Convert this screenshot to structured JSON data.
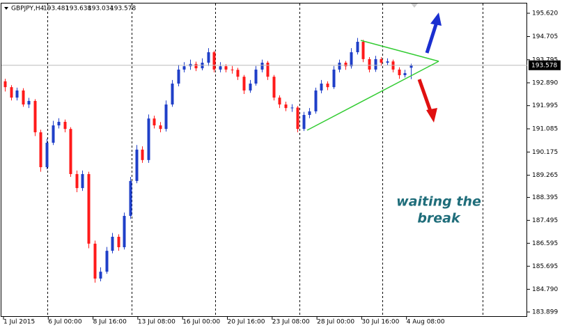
{
  "chart_data": {
    "type": "candlestick",
    "symbol": "GBPJPY,H4",
    "up_color": "#1f3fc8",
    "down_color": "#ff1a1a",
    "ylim": [
      183.708,
      196.003
    ],
    "yticks": [
      {
        "value": 195.62,
        "label": "195.620"
      },
      194.705,
      193.795,
      {
        "value": 192.89,
        "label": "192.890"
      },
      191.995,
      191.085,
      190.175,
      189.265,
      188.395,
      187.495,
      186.595,
      185.695,
      {
        "value": 184.79,
        "label": "184.790"
      },
      183.899
    ],
    "xlabels": [
      "1 Jul 2015",
      "6 Jul 00:00",
      "8 Jul 16:00",
      "13 Jul 08:00",
      "16 Jul 00:00",
      "20 Jul 16:00",
      "23 Jul 08:00",
      "28 Jul 00:00",
      "30 Jul 16:00",
      "4 Aug 08:00"
    ],
    "annotation": [
      "waiting the",
      "break"
    ],
    "candles": [
      [
        192.95,
        193.05,
        192.55,
        192.72
      ],
      [
        192.72,
        192.8,
        192.2,
        192.31
      ],
      [
        192.31,
        192.7,
        192.2,
        192.59
      ],
      [
        192.59,
        192.68,
        191.95,
        192.04
      ],
      [
        192.04,
        192.3,
        191.9,
        192.18
      ],
      [
        192.18,
        192.25,
        190.8,
        190.95
      ],
      [
        190.95,
        191.05,
        189.4,
        189.58
      ],
      [
        189.58,
        190.7,
        189.5,
        190.54
      ],
      [
        190.54,
        191.4,
        190.45,
        191.22
      ],
      [
        191.22,
        191.5,
        191.1,
        191.36
      ],
      [
        191.36,
        191.45,
        190.95,
        191.08
      ],
      [
        191.08,
        191.15,
        189.2,
        189.31
      ],
      [
        189.31,
        189.45,
        188.6,
        188.76
      ],
      [
        188.76,
        189.45,
        188.65,
        189.31
      ],
      [
        189.31,
        189.4,
        186.4,
        186.58
      ],
      [
        186.58,
        186.7,
        185.05,
        185.21
      ],
      [
        185.21,
        185.65,
        185.1,
        185.48
      ],
      [
        185.48,
        186.45,
        185.4,
        186.3
      ],
      [
        186.3,
        187.0,
        186.2,
        186.85
      ],
      [
        186.85,
        186.95,
        186.3,
        186.44
      ],
      [
        186.44,
        187.8,
        186.35,
        187.67
      ],
      [
        187.67,
        189.2,
        187.55,
        189.04
      ],
      [
        189.04,
        190.45,
        188.95,
        190.27
      ],
      [
        190.27,
        190.4,
        189.75,
        189.86
      ],
      [
        189.86,
        191.65,
        189.75,
        191.49
      ],
      [
        191.49,
        191.6,
        191.1,
        191.22
      ],
      [
        191.22,
        191.35,
        190.95,
        191.08
      ],
      [
        191.08,
        192.2,
        190.98,
        192.04
      ],
      [
        192.04,
        193.0,
        191.95,
        192.86
      ],
      [
        192.86,
        193.6,
        192.75,
        193.41
      ],
      [
        193.41,
        193.7,
        193.3,
        193.54
      ],
      [
        193.54,
        193.8,
        193.4,
        193.63
      ],
      [
        193.63,
        193.72,
        193.35,
        193.46
      ],
      [
        193.46,
        193.85,
        193.38,
        193.68
      ],
      [
        193.68,
        194.25,
        193.55,
        194.09
      ],
      [
        194.09,
        194.15,
        193.3,
        193.41
      ],
      [
        193.41,
        193.7,
        193.3,
        193.54
      ],
      [
        193.54,
        193.62,
        193.3,
        193.41
      ],
      [
        193.41,
        193.55,
        193.25,
        193.4
      ],
      [
        193.4,
        193.48,
        193.0,
        193.13
      ],
      [
        193.13,
        193.2,
        192.45,
        192.59
      ],
      [
        192.59,
        193.0,
        192.5,
        192.86
      ],
      [
        192.86,
        193.55,
        192.78,
        193.41
      ],
      [
        193.41,
        193.8,
        193.3,
        193.68
      ],
      [
        193.68,
        193.75,
        193.0,
        193.13
      ],
      [
        193.13,
        193.2,
        192.2,
        192.31
      ],
      [
        192.31,
        192.4,
        191.9,
        192.04
      ],
      [
        192.04,
        192.15,
        191.78,
        191.9
      ],
      [
        191.9,
        192.05,
        191.75,
        191.92
      ],
      [
        191.92,
        191.98,
        190.95,
        191.08
      ],
      [
        191.08,
        191.75,
        191.0,
        191.63
      ],
      [
        191.63,
        191.9,
        191.5,
        191.77
      ],
      [
        191.77,
        192.7,
        191.68,
        192.59
      ],
      [
        192.59,
        193.0,
        192.48,
        192.86
      ],
      [
        192.86,
        192.95,
        192.6,
        192.72
      ],
      [
        192.72,
        193.55,
        192.65,
        193.41
      ],
      [
        193.41,
        193.8,
        193.3,
        193.68
      ],
      [
        193.68,
        193.75,
        193.4,
        193.54
      ],
      [
        193.54,
        194.25,
        193.45,
        194.09
      ],
      [
        194.09,
        194.65,
        194.0,
        194.5
      ],
      [
        194.5,
        194.58,
        193.7,
        193.82
      ],
      [
        193.82,
        193.9,
        193.3,
        193.41
      ],
      [
        193.41,
        193.95,
        193.32,
        193.82
      ],
      [
        193.82,
        193.9,
        193.55,
        193.68
      ],
      [
        193.68,
        193.85,
        193.58,
        193.73
      ],
      [
        193.73,
        193.8,
        193.3,
        193.41
      ],
      [
        193.41,
        193.5,
        193.05,
        193.19
      ],
      [
        193.19,
        193.4,
        193.1,
        193.27
      ],
      [
        193.481,
        193.638,
        193.034,
        193.578
      ]
    ]
  }
}
